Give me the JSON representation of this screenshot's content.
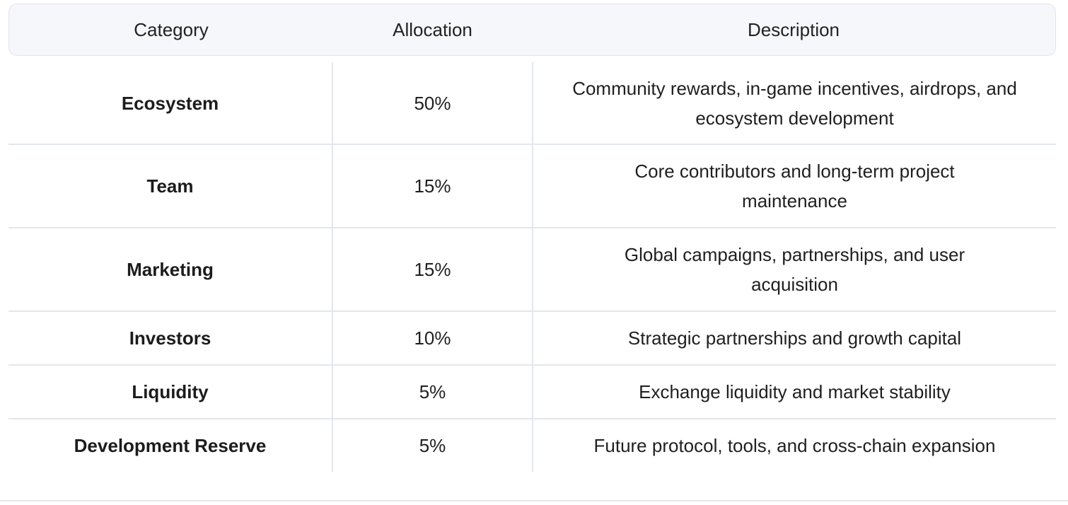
{
  "table": {
    "headers": [
      "Category",
      "Allocation",
      "Description"
    ],
    "rows": [
      {
        "category": "Ecosystem",
        "allocation": "50%",
        "description": "Community rewards, in-game incentives, airdrops, and ecosystem development"
      },
      {
        "category": "Team",
        "allocation": "15%",
        "description": "Core contributors and long-term project maintenance"
      },
      {
        "category": "Marketing",
        "allocation": "15%",
        "description": "Global campaigns, partnerships, and user acquisition"
      },
      {
        "category": "Investors",
        "allocation": "10%",
        "description": "Strategic partnerships and growth capital"
      },
      {
        "category": "Liquidity",
        "allocation": "5%",
        "description": "Exchange liquidity and market stability"
      },
      {
        "category": "Development Reserve",
        "allocation": "5%",
        "description": "Future protocol, tools, and cross-chain expansion"
      }
    ]
  }
}
